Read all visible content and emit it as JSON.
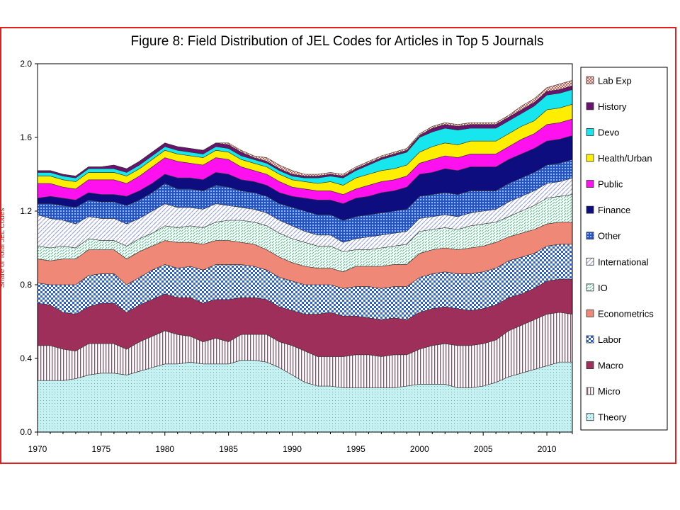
{
  "chart_data": {
    "type": "area",
    "stacked": true,
    "title": "Figure 8: Field Distribution of JEL Codes for Articles in Top 5 Journals",
    "xlabel": "",
    "ylabel": "Share of Total JEL Codes",
    "xlim": [
      1970,
      2012
    ],
    "ylim": [
      0,
      2.0
    ],
    "yticks": [
      "0.0",
      "0.4",
      "0.8",
      "1.2",
      "1.6",
      "2.0"
    ],
    "xticks": [
      "1970",
      "1975",
      "1980",
      "1985",
      "1990",
      "1995",
      "2000",
      "2005",
      "2010"
    ],
    "x": [
      1970,
      1971,
      1972,
      1973,
      1974,
      1975,
      1976,
      1977,
      1978,
      1979,
      1980,
      1981,
      1982,
      1983,
      1984,
      1985,
      1986,
      1987,
      1988,
      1989,
      1990,
      1991,
      1992,
      1993,
      1994,
      1995,
      1996,
      1997,
      1998,
      1999,
      2000,
      2001,
      2002,
      2003,
      2004,
      2005,
      2006,
      2007,
      2008,
      2009,
      2010,
      2011,
      2012
    ],
    "legend_position": "right",
    "series": [
      {
        "name": "Theory",
        "color": "#c6f1f3",
        "pattern": "dots",
        "values": [
          0.28,
          0.28,
          0.28,
          0.29,
          0.31,
          0.32,
          0.32,
          0.31,
          0.33,
          0.35,
          0.37,
          0.37,
          0.38,
          0.37,
          0.37,
          0.37,
          0.39,
          0.39,
          0.38,
          0.35,
          0.31,
          0.27,
          0.25,
          0.25,
          0.24,
          0.24,
          0.24,
          0.24,
          0.24,
          0.25,
          0.26,
          0.26,
          0.26,
          0.24,
          0.24,
          0.25,
          0.27,
          0.3,
          0.32,
          0.34,
          0.36,
          0.38,
          0.38
        ]
      },
      {
        "name": "Micro",
        "color": "#d7a0b5",
        "pattern": "vlines",
        "values": [
          0.19,
          0.19,
          0.17,
          0.15,
          0.17,
          0.16,
          0.16,
          0.14,
          0.16,
          0.17,
          0.18,
          0.16,
          0.14,
          0.12,
          0.14,
          0.12,
          0.14,
          0.14,
          0.15,
          0.14,
          0.16,
          0.17,
          0.16,
          0.16,
          0.17,
          0.18,
          0.18,
          0.17,
          0.18,
          0.17,
          0.19,
          0.21,
          0.22,
          0.23,
          0.23,
          0.23,
          0.23,
          0.25,
          0.26,
          0.27,
          0.28,
          0.27,
          0.26
        ]
      },
      {
        "name": "Macro",
        "color": "#9e2f5a",
        "pattern": "solid",
        "values": [
          0.23,
          0.22,
          0.2,
          0.2,
          0.2,
          0.22,
          0.22,
          0.2,
          0.2,
          0.2,
          0.2,
          0.2,
          0.21,
          0.21,
          0.21,
          0.23,
          0.2,
          0.2,
          0.19,
          0.19,
          0.19,
          0.2,
          0.23,
          0.24,
          0.22,
          0.21,
          0.2,
          0.2,
          0.2,
          0.19,
          0.2,
          0.2,
          0.2,
          0.2,
          0.19,
          0.19,
          0.19,
          0.18,
          0.17,
          0.17,
          0.18,
          0.18,
          0.19
        ]
      },
      {
        "name": "Labor",
        "color": "#2f5fd0",
        "pattern": "checker",
        "values": [
          0.11,
          0.11,
          0.15,
          0.16,
          0.17,
          0.16,
          0.16,
          0.15,
          0.15,
          0.16,
          0.16,
          0.16,
          0.17,
          0.18,
          0.19,
          0.19,
          0.18,
          0.17,
          0.16,
          0.16,
          0.16,
          0.16,
          0.16,
          0.15,
          0.15,
          0.16,
          0.17,
          0.17,
          0.17,
          0.18,
          0.19,
          0.19,
          0.19,
          0.19,
          0.2,
          0.2,
          0.2,
          0.2,
          0.2,
          0.19,
          0.19,
          0.19,
          0.19
        ]
      },
      {
        "name": "Econometrics",
        "color": "#f08878",
        "pattern": "solid",
        "values": [
          0.13,
          0.13,
          0.14,
          0.14,
          0.14,
          0.13,
          0.13,
          0.14,
          0.14,
          0.13,
          0.13,
          0.14,
          0.13,
          0.14,
          0.13,
          0.13,
          0.12,
          0.12,
          0.11,
          0.11,
          0.1,
          0.1,
          0.09,
          0.09,
          0.09,
          0.11,
          0.11,
          0.12,
          0.12,
          0.12,
          0.13,
          0.13,
          0.13,
          0.13,
          0.14,
          0.14,
          0.14,
          0.13,
          0.13,
          0.13,
          0.12,
          0.12,
          0.12
        ]
      },
      {
        "name": "IO",
        "color": "#8ad0a8",
        "pattern": "dashes",
        "values": [
          0.07,
          0.07,
          0.07,
          0.06,
          0.06,
          0.05,
          0.05,
          0.07,
          0.07,
          0.07,
          0.08,
          0.08,
          0.09,
          0.09,
          0.1,
          0.11,
          0.12,
          0.12,
          0.13,
          0.13,
          0.13,
          0.13,
          0.12,
          0.12,
          0.11,
          0.09,
          0.09,
          0.1,
          0.1,
          0.11,
          0.12,
          0.11,
          0.11,
          0.11,
          0.12,
          0.12,
          0.11,
          0.11,
          0.12,
          0.13,
          0.14,
          0.14,
          0.15
        ]
      },
      {
        "name": "International",
        "color": "#c0c4e4",
        "pattern": "diag",
        "values": [
          0.17,
          0.16,
          0.14,
          0.13,
          0.12,
          0.12,
          0.12,
          0.12,
          0.11,
          0.12,
          0.12,
          0.11,
          0.1,
          0.1,
          0.1,
          0.08,
          0.07,
          0.07,
          0.07,
          0.07,
          0.07,
          0.06,
          0.06,
          0.06,
          0.05,
          0.06,
          0.07,
          0.07,
          0.07,
          0.07,
          0.07,
          0.07,
          0.07,
          0.07,
          0.07,
          0.07,
          0.07,
          0.08,
          0.08,
          0.08,
          0.08,
          0.08,
          0.09
        ]
      },
      {
        "name": "Other",
        "color": "#2255cc",
        "pattern": "grid",
        "values": [
          0.06,
          0.08,
          0.08,
          0.09,
          0.09,
          0.09,
          0.09,
          0.1,
          0.1,
          0.1,
          0.11,
          0.1,
          0.1,
          0.1,
          0.1,
          0.1,
          0.09,
          0.09,
          0.09,
          0.09,
          0.1,
          0.11,
          0.11,
          0.11,
          0.12,
          0.12,
          0.12,
          0.12,
          0.12,
          0.12,
          0.12,
          0.12,
          0.12,
          0.12,
          0.12,
          0.11,
          0.1,
          0.1,
          0.1,
          0.1,
          0.1,
          0.1,
          0.1
        ]
      },
      {
        "name": "Finance",
        "color": "#0d0d80",
        "pattern": "solid",
        "values": [
          0.03,
          0.04,
          0.04,
          0.04,
          0.04,
          0.04,
          0.04,
          0.05,
          0.05,
          0.05,
          0.05,
          0.06,
          0.06,
          0.06,
          0.07,
          0.07,
          0.06,
          0.06,
          0.06,
          0.06,
          0.06,
          0.07,
          0.08,
          0.08,
          0.09,
          0.1,
          0.1,
          0.11,
          0.11,
          0.12,
          0.12,
          0.12,
          0.13,
          0.13,
          0.13,
          0.13,
          0.13,
          0.13,
          0.13,
          0.13,
          0.13,
          0.13,
          0.13
        ]
      },
      {
        "name": "Public",
        "color": "#ff10ee",
        "pattern": "solid",
        "values": [
          0.08,
          0.07,
          0.06,
          0.06,
          0.07,
          0.08,
          0.08,
          0.07,
          0.08,
          0.09,
          0.09,
          0.09,
          0.08,
          0.08,
          0.08,
          0.08,
          0.07,
          0.06,
          0.06,
          0.06,
          0.05,
          0.05,
          0.05,
          0.05,
          0.05,
          0.05,
          0.06,
          0.06,
          0.06,
          0.06,
          0.06,
          0.07,
          0.07,
          0.07,
          0.07,
          0.07,
          0.07,
          0.07,
          0.08,
          0.08,
          0.09,
          0.09,
          0.09
        ]
      },
      {
        "name": "Health/Urban",
        "color": "#ffee00",
        "pattern": "solid",
        "values": [
          0.04,
          0.04,
          0.04,
          0.04,
          0.04,
          0.04,
          0.04,
          0.04,
          0.04,
          0.04,
          0.04,
          0.04,
          0.04,
          0.04,
          0.04,
          0.04,
          0.04,
          0.04,
          0.04,
          0.04,
          0.04,
          0.04,
          0.04,
          0.05,
          0.05,
          0.06,
          0.06,
          0.06,
          0.06,
          0.06,
          0.06,
          0.07,
          0.07,
          0.07,
          0.07,
          0.07,
          0.07,
          0.07,
          0.07,
          0.07,
          0.08,
          0.08,
          0.08
        ]
      },
      {
        "name": "Devo",
        "color": "#18e6ee",
        "pattern": "solid",
        "values": [
          0.02,
          0.02,
          0.02,
          0.02,
          0.02,
          0.02,
          0.02,
          0.02,
          0.02,
          0.02,
          0.02,
          0.02,
          0.02,
          0.02,
          0.02,
          0.02,
          0.02,
          0.02,
          0.02,
          0.02,
          0.02,
          0.02,
          0.03,
          0.03,
          0.04,
          0.04,
          0.05,
          0.06,
          0.07,
          0.07,
          0.08,
          0.08,
          0.08,
          0.08,
          0.07,
          0.07,
          0.07,
          0.07,
          0.07,
          0.08,
          0.08,
          0.08,
          0.08
        ]
      },
      {
        "name": "History",
        "color": "#6a1270",
        "pattern": "solid",
        "values": [
          0.01,
          0.01,
          0.01,
          0.01,
          0.01,
          0.01,
          0.02,
          0.02,
          0.02,
          0.02,
          0.02,
          0.02,
          0.02,
          0.02,
          0.02,
          0.02,
          0.02,
          0.01,
          0.01,
          0.01,
          0.01,
          0.01,
          0.01,
          0.01,
          0.01,
          0.01,
          0.01,
          0.01,
          0.01,
          0.01,
          0.01,
          0.02,
          0.02,
          0.02,
          0.02,
          0.02,
          0.02,
          0.02,
          0.02,
          0.02,
          0.02,
          0.02,
          0.02
        ]
      },
      {
        "name": "Lab Exp",
        "color": "#c47f6a",
        "pattern": "hatch",
        "values": [
          0.0,
          0.0,
          0.0,
          0.0,
          0.0,
          0.0,
          0.0,
          0.0,
          0.0,
          0.0,
          0.0,
          0.0,
          0.0,
          0.0,
          0.0,
          0.01,
          0.01,
          0.01,
          0.02,
          0.02,
          0.02,
          0.01,
          0.01,
          0.01,
          0.01,
          0.01,
          0.01,
          0.01,
          0.01,
          0.01,
          0.01,
          0.01,
          0.01,
          0.01,
          0.01,
          0.01,
          0.01,
          0.01,
          0.02,
          0.02,
          0.02,
          0.03,
          0.03
        ]
      }
    ]
  }
}
